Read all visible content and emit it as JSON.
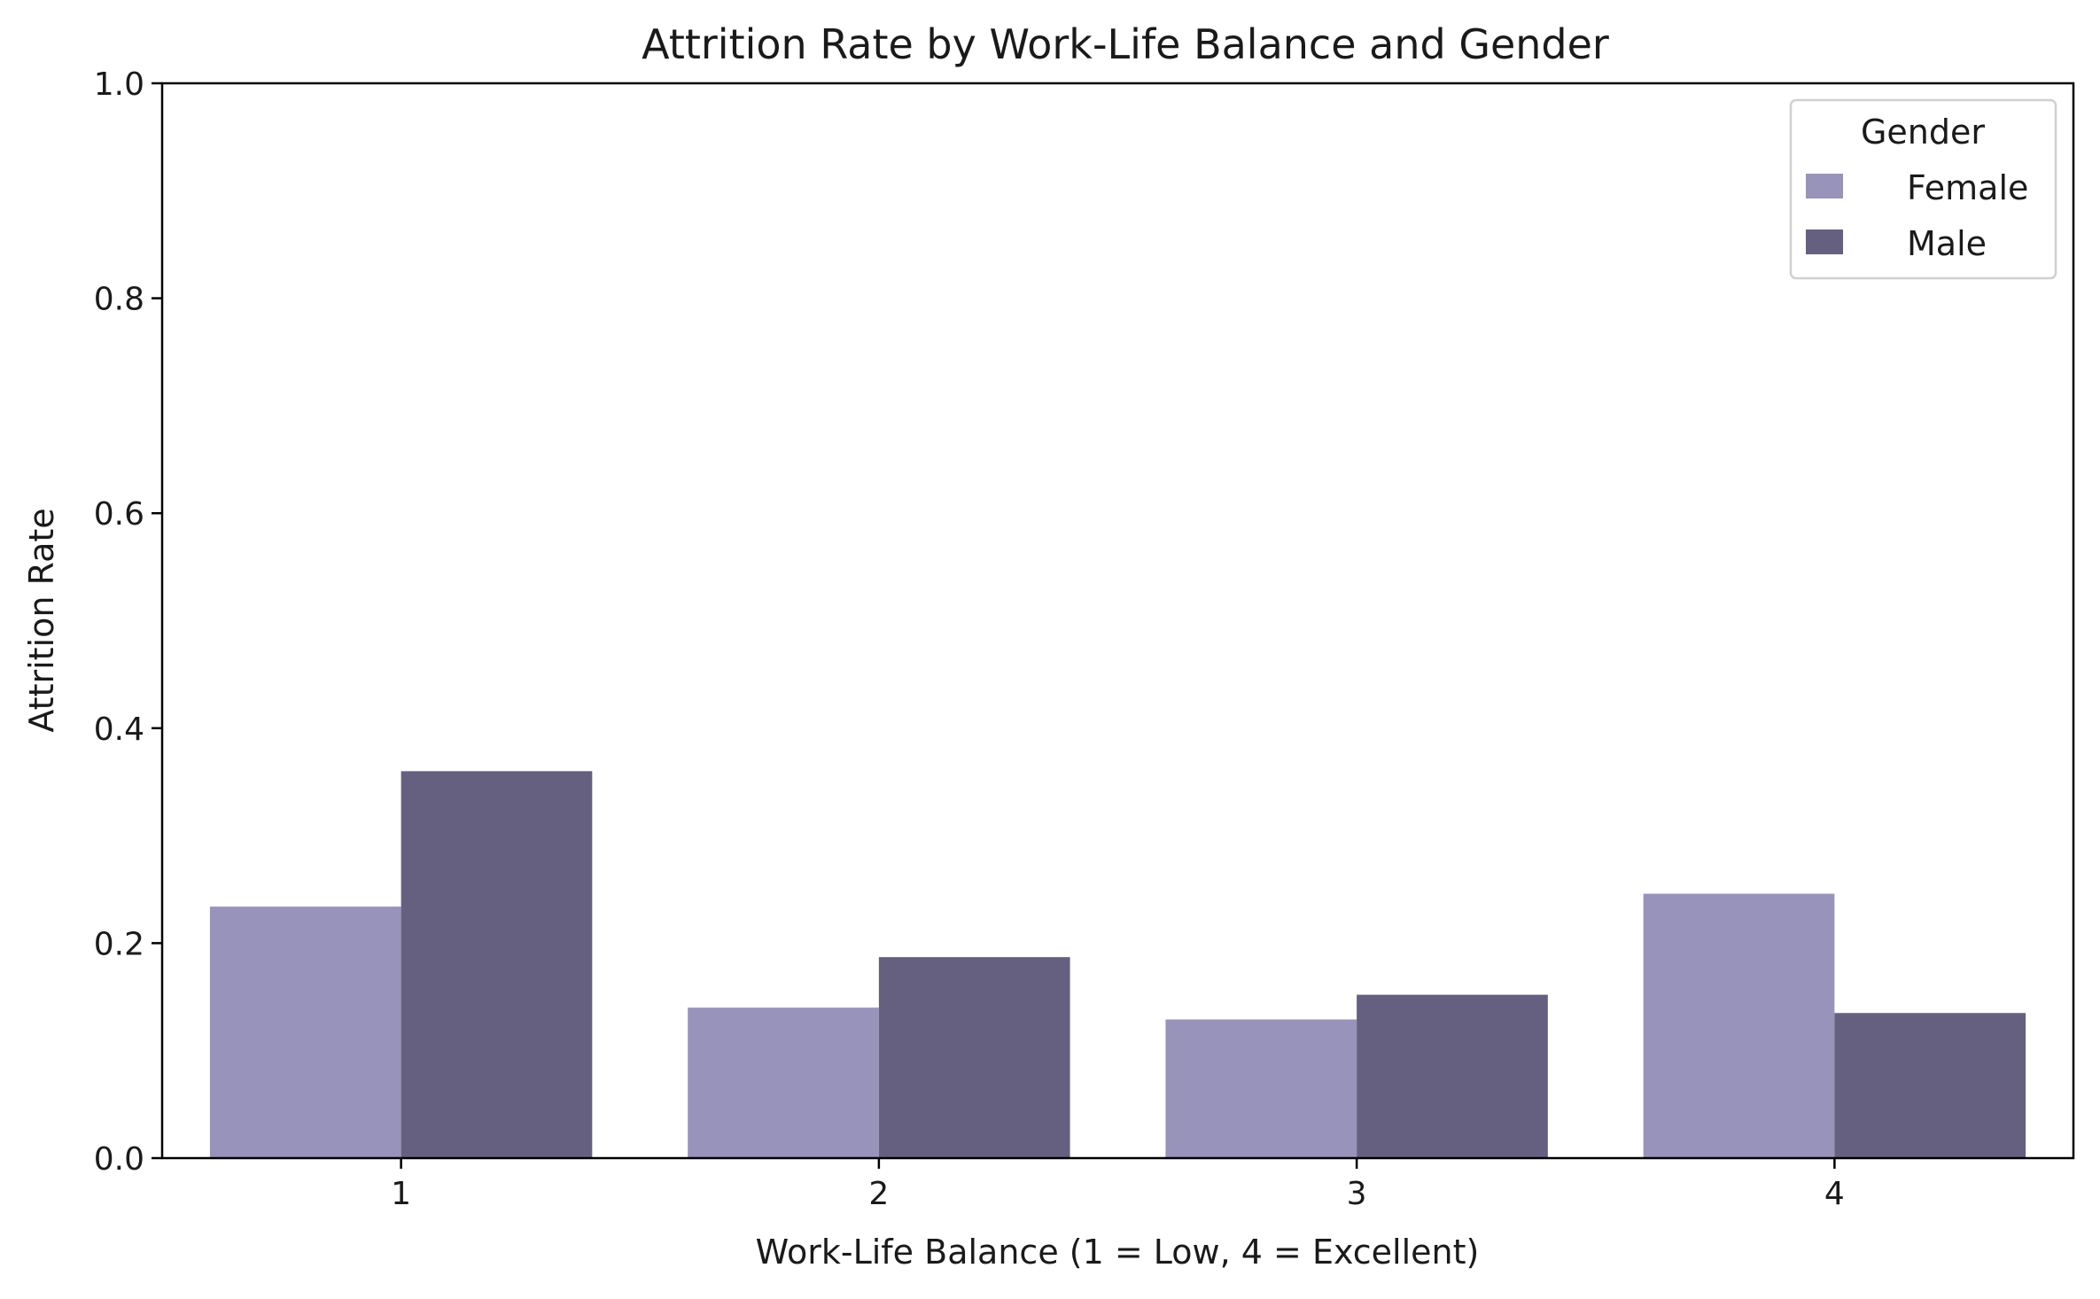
{
  "chart_data": {
    "type": "bar",
    "title": "Attrition Rate by Work-Life Balance and Gender",
    "xlabel": "Work-Life Balance (1 = Low, 4 = Excellent)",
    "ylabel": "Attrition Rate",
    "categories": [
      "1",
      "2",
      "3",
      "4"
    ],
    "ylim": [
      0,
      1
    ],
    "yticks": [
      "0.0",
      "0.2",
      "0.4",
      "0.6",
      "0.8",
      "1.0"
    ],
    "grid": false,
    "legend": {
      "title": "Gender",
      "placement": "top-right"
    },
    "series": [
      {
        "name": "Female",
        "color": "#9893ba",
        "values": [
          0.234,
          0.14,
          0.129,
          0.246
        ]
      },
      {
        "name": "Male",
        "color": "#65607f",
        "values": [
          0.36,
          0.187,
          0.152,
          0.135
        ]
      }
    ]
  }
}
